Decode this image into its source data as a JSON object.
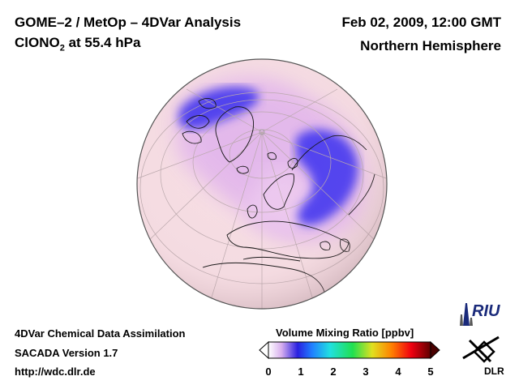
{
  "header": {
    "title_line1": "GOME–2 / MetOp – 4DVar Analysis",
    "title_line2_prefix": "ClONO",
    "title_line2_sub": "2",
    "title_line2_suffix": " at 55.4 hPa",
    "date": "Feb 02, 2009, 12:00 GMT",
    "region": "Northern Hemisphere"
  },
  "footer": {
    "line1": "4DVar Chemical Data Assimilation",
    "line2": "SACADA Version 1.7",
    "line3": "http://wdc.dlr.de"
  },
  "colorbar": {
    "title": "Volume Mixing Ratio [ppbv]",
    "ticks": [
      "0",
      "1",
      "2",
      "3",
      "4",
      "5"
    ],
    "range": [
      0,
      5
    ],
    "stops": [
      "#ffffff",
      "#d8b0ee",
      "#2a20e0",
      "#2080ff",
      "#20e0e0",
      "#20e050",
      "#e0e020",
      "#ff8000",
      "#f00010",
      "#600000"
    ]
  },
  "map": {
    "projection": "orthographic",
    "center": "North Pole view",
    "background_color": "#f6dde3",
    "low_color": "#4c3ef0",
    "mid_color": "#d9a6e9",
    "grid": true
  },
  "logos": {
    "riu": "RIU",
    "dlr": "DLR"
  }
}
